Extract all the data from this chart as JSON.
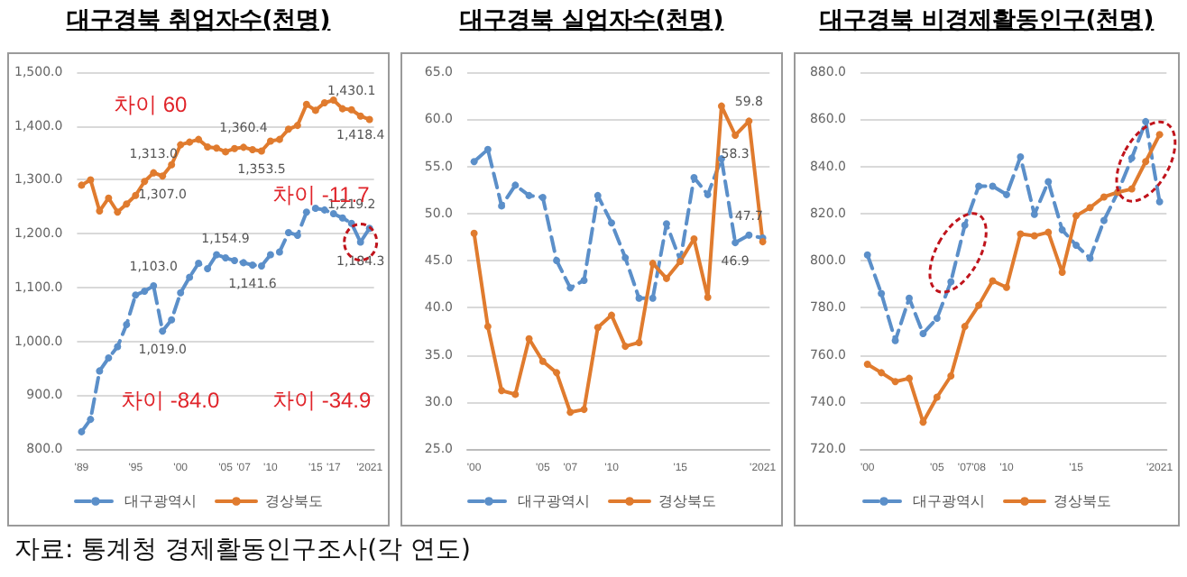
{
  "chart_data": [
    {
      "type": "line",
      "title": "대구경북 취업자수(천명)",
      "categories": [
        "'89",
        null,
        null,
        null,
        null,
        null,
        "'95",
        null,
        null,
        null,
        null,
        "'00",
        null,
        null,
        null,
        null,
        "'05",
        null,
        "'07",
        null,
        null,
        "'10",
        null,
        null,
        null,
        null,
        "'15",
        null,
        "'17",
        null,
        null,
        null,
        "'2021"
      ],
      "series": [
        {
          "name": "대구광역시",
          "color": "#5b8fc9",
          "line_style": "dashed",
          "values": [
            832,
            855,
            945,
            969,
            990,
            1031,
            1086,
            1093,
            1103.0,
            1019.0,
            1040,
            1090,
            1119,
            1145,
            1135,
            1161,
            1154.9,
            1150,
            1146,
            1141.6,
            1140,
            1161,
            1166,
            1202,
            1197,
            1240,
            1247,
            1244,
            1237,
            1229,
            1219.2,
            1184.3,
            1210
          ],
          "value_labels": [
            null,
            null,
            null,
            null,
            null,
            null,
            null,
            null,
            "1,103.0",
            "1,019.0",
            null,
            null,
            null,
            null,
            null,
            null,
            "1,154.9",
            null,
            null,
            "1,141.6",
            null,
            null,
            null,
            null,
            null,
            null,
            null,
            null,
            null,
            null,
            "1,219.2",
            "1,184.3",
            null
          ]
        },
        {
          "name": "경상북도",
          "color": "#e07b2e",
          "line_style": "solid",
          "values": [
            1290,
            1300,
            1242,
            1266,
            1240,
            1255,
            1271,
            1297,
            1313.0,
            1307.0,
            1328,
            1365,
            1370,
            1375,
            1361,
            1359,
            1352,
            1358,
            1360.4,
            1356,
            1353.5,
            1372,
            1375,
            1394,
            1401,
            1440,
            1429,
            1443,
            1448,
            1432,
            1430.1,
            1418.4,
            1412
          ],
          "value_labels": [
            null,
            null,
            null,
            null,
            null,
            null,
            null,
            null,
            "1,313.0",
            "1,307.0",
            null,
            null,
            null,
            null,
            null,
            null,
            null,
            null,
            "1,360.4",
            null,
            "1,353.5",
            null,
            null,
            null,
            null,
            null,
            null,
            null,
            null,
            null,
            "1,430.1",
            "1,418.4",
            null
          ]
        }
      ],
      "ylim": [
        800,
        1500
      ],
      "yticks": [
        {
          "value": 800,
          "label": "800.0"
        },
        {
          "value": 900,
          "label": "900.0"
        },
        {
          "value": 1000,
          "label": "1,000.0"
        },
        {
          "value": 1100,
          "label": "1,100.0"
        },
        {
          "value": 1200,
          "label": "1,200.0"
        },
        {
          "value": 1300,
          "label": "1,300.0"
        },
        {
          "value": 1400,
          "label": "1,400.0"
        },
        {
          "value": 1500,
          "label": "1,500.0"
        }
      ],
      "grid": "y",
      "legend": "bottom",
      "marker": "circle",
      "annotations": [
        "차이 60",
        "차이 -11.7",
        "차이 -84.0",
        "차이 -34.9",
        "자료: 통계청 경제활동인구조사(각 연도)"
      ]
    },
    {
      "type": "line",
      "title": "대구경북 실업자수(천명)",
      "categories": [
        "'00",
        null,
        null,
        null,
        null,
        "'05",
        null,
        "'07",
        null,
        null,
        "'10",
        null,
        null,
        null,
        null,
        "'15",
        null,
        null,
        null,
        null,
        null,
        "'2021"
      ],
      "series": [
        {
          "name": "대구광역시",
          "color": "#5b8fc9",
          "line_style": "dashed",
          "values": [
            55.5,
            56.8,
            50.8,
            53.0,
            51.9,
            51.7,
            45.0,
            42.1,
            42.9,
            51.9,
            49.0,
            45.3,
            41.0,
            41.0,
            48.9,
            45.0,
            53.8,
            52.0,
            55.8,
            46.9,
            47.7,
            47.4
          ],
          "value_labels": [
            null,
            null,
            null,
            null,
            null,
            null,
            null,
            null,
            null,
            null,
            null,
            null,
            null,
            null,
            null,
            null,
            null,
            null,
            null,
            "46.9",
            "47.7",
            null
          ]
        },
        {
          "name": "경상북도",
          "color": "#e07b2e",
          "line_style": "solid",
          "values": [
            47.9,
            38.0,
            31.2,
            30.8,
            36.7,
            34.3,
            33.1,
            28.9,
            29.2,
            37.9,
            39.2,
            35.9,
            36.3,
            44.7,
            43.1,
            44.9,
            47.3,
            41.1,
            61.4,
            58.3,
            59.8,
            47.0
          ],
          "value_labels": [
            null,
            null,
            null,
            null,
            null,
            null,
            null,
            null,
            null,
            null,
            null,
            null,
            null,
            null,
            null,
            null,
            null,
            null,
            null,
            "58.3",
            "59.8",
            null
          ]
        }
      ],
      "ylim": [
        25,
        65
      ],
      "yticks": [
        {
          "value": 25,
          "label": "25.0"
        },
        {
          "value": 30,
          "label": "30.0"
        },
        {
          "value": 35,
          "label": "35.0"
        },
        {
          "value": 40,
          "label": "40.0"
        },
        {
          "value": 45,
          "label": "45.0"
        },
        {
          "value": 50,
          "label": "50.0"
        },
        {
          "value": 55,
          "label": "55.0"
        },
        {
          "value": 60,
          "label": "60.0"
        },
        {
          "value": 65,
          "label": "65.0"
        }
      ],
      "grid": "y",
      "legend": "bottom",
      "marker": "circle"
    },
    {
      "type": "line",
      "title": "대구경북 비경제활동인구(천명)",
      "categories": [
        "'00",
        null,
        null,
        null,
        null,
        "'05",
        null,
        "'07",
        "'08",
        null,
        "'10",
        null,
        null,
        null,
        null,
        "'15",
        null,
        null,
        null,
        null,
        null,
        "'2021"
      ],
      "series": [
        {
          "name": "대구광역시",
          "color": "#5b8fc9",
          "line_style": "dashed",
          "values": [
            802.4,
            786,
            766,
            784,
            769,
            775.5,
            791,
            815,
            831.6,
            831.6,
            828,
            844,
            819.6,
            833.5,
            813,
            806.5,
            801,
            817,
            829,
            843.5,
            859,
            825
          ]
        },
        {
          "name": "경상북도",
          "color": "#e07b2e",
          "line_style": "solid",
          "values": [
            756,
            752.4,
            748.6,
            750,
            731.4,
            742,
            751,
            772,
            781,
            791.4,
            788.6,
            811.3,
            810.5,
            812,
            795,
            819,
            822.5,
            827,
            829,
            830.4,
            842,
            853.5
          ]
        }
      ],
      "ylim": [
        720,
        880
      ],
      "yticks": [
        {
          "value": 720,
          "label": "720.0"
        },
        {
          "value": 740,
          "label": "740.0"
        },
        {
          "value": 760,
          "label": "760.0"
        },
        {
          "value": 780,
          "label": "780.0"
        },
        {
          "value": 800,
          "label": "800.0"
        },
        {
          "value": 820,
          "label": "820.0"
        },
        {
          "value": 840,
          "label": "840.0"
        },
        {
          "value": 860,
          "label": "860.0"
        },
        {
          "value": 880,
          "label": "880.0"
        }
      ],
      "grid": "y",
      "legend": "bottom",
      "marker": "circle"
    }
  ]
}
